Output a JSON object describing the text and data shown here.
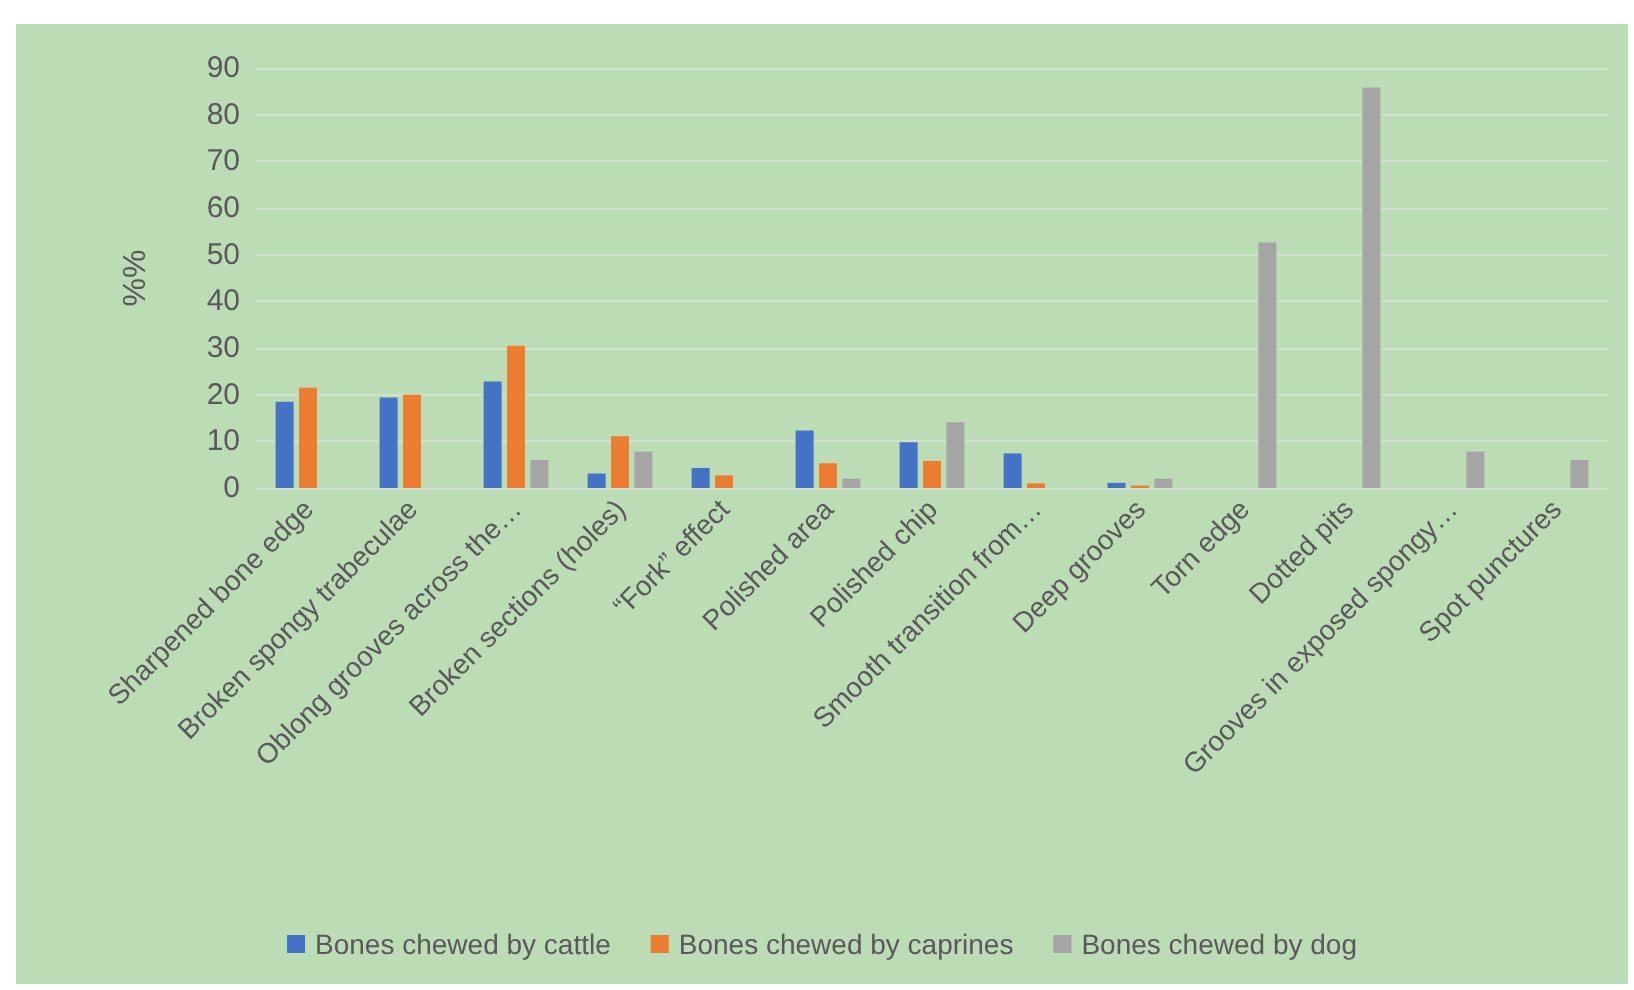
{
  "chart_data": {
    "type": "bar",
    "ylabel": "%%",
    "categories": [
      "Sharpened bone edge",
      "Broken spongy trabeculae",
      "Oblong grooves across the…",
      "Broken sections (holes)",
      "“Fork” effect",
      "Polished area",
      "Polished chip",
      "Smooth transition from…",
      "Deep grooves",
      "Torn edge",
      "Dotted pits",
      "Grooves in exposed spongy…",
      "Spot punctures"
    ],
    "series": [
      {
        "name": "Bones chewed by cattle",
        "color": "#4472c4",
        "values": [
          18.5,
          19.4,
          22.8,
          3.1,
          4.3,
          12.3,
          9.8,
          7.4,
          1.1,
          null,
          null,
          null,
          null
        ]
      },
      {
        "name": "Bones chewed by caprines",
        "color": "#ed7d31",
        "values": [
          21.5,
          20,
          30.5,
          11.1,
          2.7,
          5.3,
          5.8,
          1,
          0.5,
          null,
          null,
          null,
          null
        ]
      },
      {
        "name": "Bones chewed by dog",
        "color": "#a5a5a5",
        "values": [
          null,
          null,
          6,
          7.8,
          null,
          2,
          14.1,
          null,
          2,
          52.6,
          85.8,
          7.8,
          6
        ]
      }
    ],
    "ylim": [
      0,
      90
    ],
    "yticks": [
      0,
      10,
      20,
      30,
      40,
      50,
      60,
      70,
      80,
      90
    ],
    "grid": "y",
    "legend": "bottom"
  }
}
